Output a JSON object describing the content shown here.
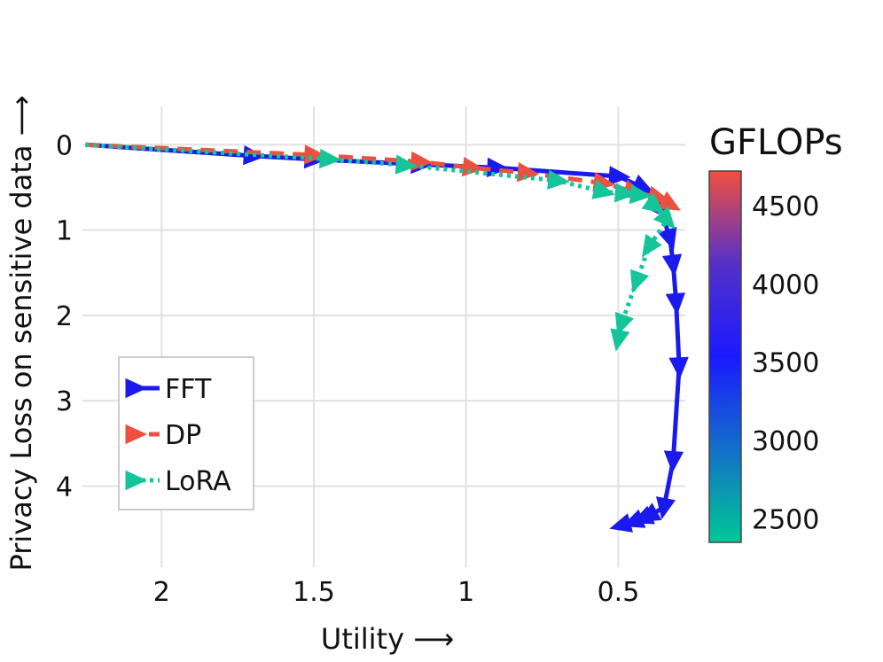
{
  "chart_data": {
    "type": "line",
    "xlabel": "Utility ⟶",
    "ylabel": "Privacy Loss on sensitive data ⟶",
    "x_reversed": true,
    "y_reversed": true,
    "xlim": [
      2.26,
      0.28
    ],
    "ylim": [
      -0.45,
      4.95
    ],
    "x_ticks": [
      2,
      1.5,
      1,
      0.5
    ],
    "x_tick_labels": [
      "2",
      "1.5",
      "1",
      "0.5"
    ],
    "y_ticks": [
      0,
      1,
      2,
      3,
      4
    ],
    "y_tick_labels": [
      "0",
      "1",
      "2",
      "3",
      "4"
    ],
    "grid": true,
    "legend_position": "lower-left",
    "series": [
      {
        "name": "FFT",
        "color": "#1a1aee",
        "dash": "solid",
        "marker": "triangle",
        "x": [
          2.25,
          1.7,
          1.5,
          1.15,
          0.9,
          0.5,
          0.42,
          0.36,
          0.33,
          0.32,
          0.31,
          0.3,
          0.32,
          0.35,
          0.4,
          0.42,
          0.45,
          0.49
        ],
        "y": [
          0,
          0.13,
          0.17,
          0.23,
          0.27,
          0.37,
          0.5,
          0.76,
          1.1,
          1.4,
          1.85,
          2.6,
          3.7,
          4.25,
          4.35,
          4.38,
          4.42,
          4.46
        ]
      },
      {
        "name": "DP",
        "color": "#ec5040",
        "dash": "dashed",
        "marker": "triangle",
        "x": [
          2.25,
          1.5,
          1.15,
          0.98,
          0.8,
          0.55,
          0.45,
          0.37,
          0.33
        ],
        "y": [
          0,
          0.12,
          0.2,
          0.27,
          0.33,
          0.45,
          0.55,
          0.62,
          0.7
        ]
      },
      {
        "name": "LoRA",
        "color": "#14c59a",
        "dash": "dotted",
        "marker": "triangle",
        "x": [
          2.25,
          1.45,
          1.2,
          0.7,
          0.55,
          0.48,
          0.43,
          0.38,
          0.34,
          0.4,
          0.44,
          0.49,
          0.5
        ],
        "y": [
          0,
          0.17,
          0.24,
          0.42,
          0.55,
          0.57,
          0.59,
          0.72,
          0.88,
          1.2,
          1.6,
          2.1,
          2.28
        ]
      }
    ],
    "colorbar": {
      "title": "GFLOPs",
      "min": 2350,
      "max": 4720,
      "ticks": [
        2500,
        3000,
        3500,
        4000,
        4500
      ],
      "tick_labels": [
        "2500",
        "3000",
        "3500",
        "4000",
        "4500"
      ],
      "colors": [
        "#00c896",
        "#1370c8",
        "#1a1aff",
        "#5530c8",
        "#f05040"
      ]
    }
  }
}
